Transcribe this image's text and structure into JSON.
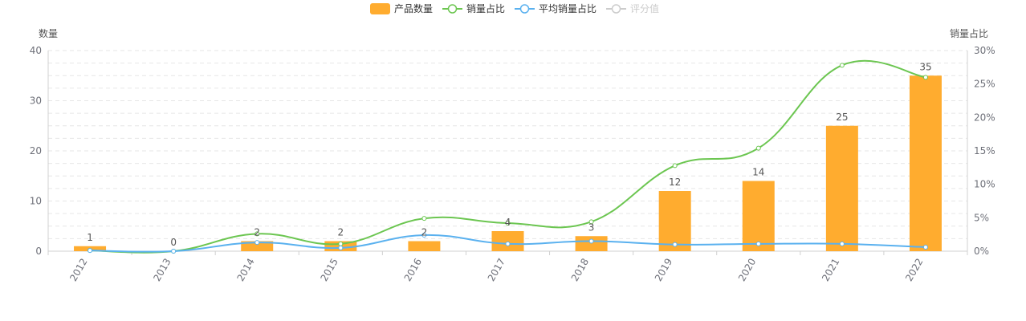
{
  "chart_data": {
    "type": "bar",
    "legend": {
      "placement": "top-center",
      "items": [
        {
          "name": "产品数量",
          "kind": "bar",
          "color": "#ffac2f",
          "active": true
        },
        {
          "name": "销量占比",
          "kind": "line",
          "color": "#6cc651",
          "active": true
        },
        {
          "name": "平均销量占比",
          "kind": "line",
          "color": "#5ab1ef",
          "active": true
        },
        {
          "name": "评分值",
          "kind": "line",
          "color": "#cccccc",
          "active": false
        }
      ]
    },
    "categories": [
      "2012",
      "2013",
      "2014",
      "2015",
      "2016",
      "2017",
      "2018",
      "2019",
      "2020",
      "2021",
      "2022"
    ],
    "y_left": {
      "name": "数量",
      "min": 0,
      "max": 40,
      "ticks": [
        "0",
        "10",
        "20",
        "30",
        "40"
      ]
    },
    "y_right": {
      "name": "销量占比",
      "min": 0,
      "max": 30,
      "ticks": [
        "0%",
        "5%",
        "10%",
        "15%",
        "20%",
        "25%",
        "30%"
      ]
    },
    "grid": true,
    "series": [
      {
        "name": "产品数量",
        "type": "bar",
        "axis": "left",
        "color": "#ffac2f",
        "values": [
          1,
          0,
          2,
          2,
          2,
          4,
          3,
          12,
          14,
          25,
          35
        ],
        "labels": [
          "1",
          "0",
          "2",
          "2",
          "2",
          "4",
          "3",
          "12",
          "14",
          "25",
          "35"
        ]
      },
      {
        "name": "销量占比",
        "type": "line",
        "smooth": true,
        "axis": "right",
        "color": "#6cc651",
        "values": [
          0.1,
          0.0,
          2.6,
          1.1,
          4.9,
          4.2,
          4.4,
          12.8,
          15.4,
          27.8,
          26.0
        ]
      },
      {
        "name": "平均销量占比",
        "type": "line",
        "smooth": true,
        "axis": "right",
        "color": "#5ab1ef",
        "values": [
          0.1,
          0.0,
          1.3,
          0.5,
          2.4,
          1.1,
          1.5,
          1.0,
          1.1,
          1.1,
          0.6
        ]
      }
    ]
  }
}
